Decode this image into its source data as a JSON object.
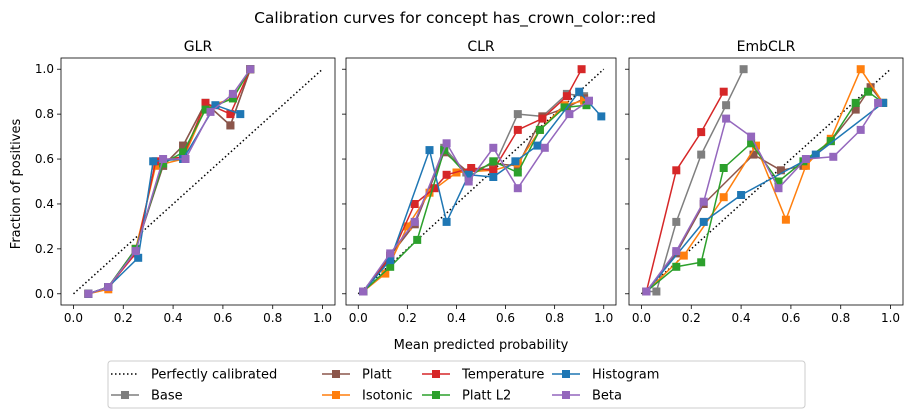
{
  "figure": {
    "suptitle": "Calibration curves for concept has_crown_color::red",
    "xlabel": "Mean predicted probability",
    "ylabel": "Fraction of positives"
  },
  "legend": {
    "placement": "bottom-center",
    "entries": [
      {
        "name": "Perfectly calibrated",
        "color": "#000000",
        "style": "dotted",
        "marker": "none"
      },
      {
        "name": "Base",
        "color": "#7f7f7f",
        "style": "solid",
        "marker": "square"
      },
      {
        "name": "Platt",
        "color": "#8c564b",
        "style": "solid",
        "marker": "square"
      },
      {
        "name": "Isotonic",
        "color": "#ff7f0e",
        "style": "solid",
        "marker": "square"
      },
      {
        "name": "Temperature",
        "color": "#d62728",
        "style": "solid",
        "marker": "square"
      },
      {
        "name": "Platt L2",
        "color": "#2ca02c",
        "style": "solid",
        "marker": "square"
      },
      {
        "name": "Histogram",
        "color": "#1f77b4",
        "style": "solid",
        "marker": "square"
      },
      {
        "name": "Beta",
        "color": "#9467bd",
        "style": "solid",
        "marker": "square"
      }
    ]
  },
  "chart_data": [
    {
      "type": "line",
      "title": "GLR",
      "xlim": [
        -0.05,
        1.05
      ],
      "ylim": [
        -0.05,
        1.05
      ],
      "xticks": [
        "0.0",
        "0.2",
        "0.4",
        "0.6",
        "0.8",
        "1.0"
      ],
      "yticks": [
        "0.0",
        "0.2",
        "0.4",
        "0.6",
        "0.8",
        "1.0"
      ],
      "show_yticklabels": true,
      "grid": false,
      "series": [
        {
          "name": "Perfectly calibrated",
          "points": [
            [
              0,
              0
            ],
            [
              1,
              1
            ]
          ]
        },
        {
          "name": "Base",
          "points": [
            [
              0.06,
              0.0
            ],
            [
              0.14,
              0.03
            ],
            [
              0.25,
              0.2
            ],
            [
              0.36,
              0.57
            ],
            [
              0.44,
              0.66
            ],
            [
              0.53,
              0.85
            ],
            [
              0.63,
              0.75
            ],
            [
              0.71,
              1.0
            ]
          ]
        },
        {
          "name": "Platt",
          "points": [
            [
              0.06,
              0.0
            ],
            [
              0.14,
              0.03
            ],
            [
              0.25,
              0.2
            ],
            [
              0.36,
              0.57
            ],
            [
              0.44,
              0.66
            ],
            [
              0.53,
              0.85
            ],
            [
              0.63,
              0.75
            ],
            [
              0.71,
              1.0
            ]
          ]
        },
        {
          "name": "Isotonic",
          "points": [
            [
              0.06,
              0.0
            ],
            [
              0.14,
              0.02
            ],
            [
              0.25,
              0.2
            ],
            [
              0.33,
              0.57
            ],
            [
              0.44,
              0.6
            ],
            [
              0.53,
              0.83
            ],
            [
              0.64,
              0.87
            ],
            [
              0.71,
              1.0
            ]
          ]
        },
        {
          "name": "Temperature",
          "points": [
            [
              0.06,
              0.0
            ],
            [
              0.14,
              0.03
            ],
            [
              0.25,
              0.18
            ],
            [
              0.33,
              0.59
            ],
            [
              0.44,
              0.61
            ],
            [
              0.53,
              0.85
            ],
            [
              0.63,
              0.8
            ],
            [
              0.71,
              1.0
            ]
          ]
        },
        {
          "name": "Platt L2",
          "points": [
            [
              0.06,
              0.0
            ],
            [
              0.14,
              0.03
            ],
            [
              0.25,
              0.2
            ],
            [
              0.36,
              0.58
            ],
            [
              0.44,
              0.63
            ],
            [
              0.53,
              0.82
            ],
            [
              0.64,
              0.87
            ],
            [
              0.71,
              1.0
            ]
          ]
        },
        {
          "name": "Histogram",
          "points": [
            [
              0.06,
              0.0
            ],
            [
              0.14,
              0.03
            ],
            [
              0.26,
              0.16
            ],
            [
              0.32,
              0.59
            ],
            [
              0.44,
              0.6
            ],
            [
              0.57,
              0.84
            ],
            [
              0.67,
              0.8
            ]
          ]
        },
        {
          "name": "Beta",
          "points": [
            [
              0.06,
              0.0
            ],
            [
              0.14,
              0.03
            ],
            [
              0.25,
              0.19
            ],
            [
              0.36,
              0.6
            ],
            [
              0.45,
              0.6
            ],
            [
              0.55,
              0.81
            ],
            [
              0.64,
              0.89
            ],
            [
              0.71,
              1.0
            ]
          ]
        }
      ]
    },
    {
      "type": "line",
      "title": "CLR",
      "xlim": [
        -0.05,
        1.05
      ],
      "ylim": [
        -0.05,
        1.05
      ],
      "xticks": [
        "0.0",
        "0.2",
        "0.4",
        "0.6",
        "0.8",
        "1.0"
      ],
      "yticks": [
        "0.0",
        "0.2",
        "0.4",
        "0.6",
        "0.8",
        "1.0"
      ],
      "show_yticklabels": false,
      "grid": false,
      "series": [
        {
          "name": "Perfectly calibrated",
          "points": [
            [
              0,
              0
            ],
            [
              1,
              1
            ]
          ]
        },
        {
          "name": "Base",
          "points": [
            [
              0.02,
              0.01
            ],
            [
              0.13,
              0.17
            ],
            [
              0.23,
              0.31
            ],
            [
              0.35,
              0.65
            ],
            [
              0.44,
              0.54
            ],
            [
              0.55,
              0.56
            ],
            [
              0.65,
              0.8
            ],
            [
              0.75,
              0.79
            ],
            [
              0.85,
              0.89
            ],
            [
              0.92,
              0.88
            ]
          ]
        },
        {
          "name": "Platt",
          "points": [
            [
              0.02,
              0.01
            ],
            [
              0.13,
              0.17
            ],
            [
              0.23,
              0.31
            ],
            [
              0.35,
              0.63
            ],
            [
              0.45,
              0.54
            ],
            [
              0.55,
              0.58
            ],
            [
              0.65,
              0.57
            ],
            [
              0.75,
              0.79
            ],
            [
              0.85,
              0.83
            ],
            [
              0.92,
              0.87
            ]
          ]
        },
        {
          "name": "Isotonic",
          "points": [
            [
              0.02,
              0.01
            ],
            [
              0.11,
              0.09
            ],
            [
              0.2,
              0.3
            ],
            [
              0.29,
              0.45
            ],
            [
              0.4,
              0.54
            ],
            [
              0.55,
              0.55
            ],
            [
              0.65,
              0.58
            ],
            [
              0.74,
              0.73
            ],
            [
              0.84,
              0.84
            ],
            [
              0.92,
              0.86
            ]
          ]
        },
        {
          "name": "Temperature",
          "points": [
            [
              0.02,
              0.01
            ],
            [
              0.13,
              0.16
            ],
            [
              0.23,
              0.4
            ],
            [
              0.31,
              0.47
            ],
            [
              0.36,
              0.53
            ],
            [
              0.46,
              0.56
            ],
            [
              0.55,
              0.55
            ],
            [
              0.65,
              0.73
            ],
            [
              0.75,
              0.78
            ],
            [
              0.85,
              0.88
            ],
            [
              0.91,
              1.0
            ]
          ]
        },
        {
          "name": "Platt L2",
          "points": [
            [
              0.02,
              0.01
            ],
            [
              0.13,
              0.12
            ],
            [
              0.24,
              0.24
            ],
            [
              0.35,
              0.64
            ],
            [
              0.45,
              0.52
            ],
            [
              0.55,
              0.59
            ],
            [
              0.65,
              0.54
            ],
            [
              0.74,
              0.73
            ],
            [
              0.84,
              0.83
            ],
            [
              0.93,
              0.84
            ]
          ]
        },
        {
          "name": "Histogram",
          "points": [
            [
              0.02,
              0.01
            ],
            [
              0.13,
              0.15
            ],
            [
              0.29,
              0.64
            ],
            [
              0.36,
              0.32
            ],
            [
              0.45,
              0.53
            ],
            [
              0.55,
              0.52
            ],
            [
              0.64,
              0.59
            ],
            [
              0.73,
              0.66
            ],
            [
              0.9,
              0.9
            ],
            [
              0.99,
              0.79
            ]
          ]
        },
        {
          "name": "Beta",
          "points": [
            [
              0.02,
              0.01
            ],
            [
              0.13,
              0.18
            ],
            [
              0.23,
              0.32
            ],
            [
              0.36,
              0.67
            ],
            [
              0.45,
              0.5
            ],
            [
              0.55,
              0.65
            ],
            [
              0.65,
              0.47
            ],
            [
              0.76,
              0.65
            ],
            [
              0.86,
              0.8
            ],
            [
              0.94,
              0.86
            ]
          ]
        }
      ]
    },
    {
      "type": "line",
      "title": "EmbCLR",
      "xlim": [
        -0.05,
        1.05
      ],
      "ylim": [
        -0.05,
        1.05
      ],
      "xticks": [
        "0.0",
        "0.2",
        "0.4",
        "0.6",
        "0.8",
        "1.0"
      ],
      "yticks": [
        "0.0",
        "0.2",
        "0.4",
        "0.6",
        "0.8",
        "1.0"
      ],
      "show_yticklabels": false,
      "grid": false,
      "series": [
        {
          "name": "Perfectly calibrated",
          "points": [
            [
              0,
              0
            ],
            [
              1,
              1
            ]
          ]
        },
        {
          "name": "Base",
          "points": [
            [
              0.02,
              0.01
            ],
            [
              0.06,
              0.01
            ],
            [
              0.14,
              0.32
            ],
            [
              0.24,
              0.62
            ],
            [
              0.34,
              0.84
            ],
            [
              0.41,
              1.0
            ]
          ]
        },
        {
          "name": "Platt",
          "points": [
            [
              0.02,
              0.01
            ],
            [
              0.14,
              0.18
            ],
            [
              0.25,
              0.4
            ],
            [
              0.45,
              0.62
            ],
            [
              0.56,
              0.55
            ],
            [
              0.65,
              0.57
            ],
            [
              0.76,
              0.68
            ],
            [
              0.86,
              0.82
            ],
            [
              0.92,
              0.92
            ],
            [
              0.97,
              0.85
            ]
          ]
        },
        {
          "name": "Isotonic",
          "points": [
            [
              0.02,
              0.01
            ],
            [
              0.17,
              0.17
            ],
            [
              0.33,
              0.43
            ],
            [
              0.46,
              0.66
            ],
            [
              0.58,
              0.33
            ],
            [
              0.66,
              0.57
            ],
            [
              0.76,
              0.69
            ],
            [
              0.88,
              1.0
            ],
            [
              0.97,
              0.85
            ]
          ]
        },
        {
          "name": "Temperature",
          "points": [
            [
              0.02,
              0.01
            ],
            [
              0.14,
              0.55
            ],
            [
              0.24,
              0.72
            ],
            [
              0.33,
              0.9
            ]
          ]
        },
        {
          "name": "Platt L2",
          "points": [
            [
              0.02,
              0.01
            ],
            [
              0.14,
              0.12
            ],
            [
              0.24,
              0.14
            ],
            [
              0.33,
              0.56
            ],
            [
              0.44,
              0.67
            ],
            [
              0.55,
              0.5
            ],
            [
              0.65,
              0.59
            ],
            [
              0.76,
              0.68
            ],
            [
              0.86,
              0.85
            ],
            [
              0.91,
              0.9
            ],
            [
              0.97,
              0.85
            ]
          ]
        },
        {
          "name": "Histogram",
          "points": [
            [
              0.02,
              0.01
            ],
            [
              0.25,
              0.32
            ],
            [
              0.4,
              0.44
            ],
            [
              0.7,
              0.62
            ],
            [
              0.97,
              0.85
            ]
          ]
        },
        {
          "name": "Beta",
          "points": [
            [
              0.02,
              0.01
            ],
            [
              0.14,
              0.19
            ],
            [
              0.25,
              0.41
            ],
            [
              0.34,
              0.78
            ],
            [
              0.44,
              0.7
            ],
            [
              0.55,
              0.47
            ],
            [
              0.66,
              0.6
            ],
            [
              0.77,
              0.61
            ],
            [
              0.88,
              0.73
            ],
            [
              0.95,
              0.85
            ]
          ]
        }
      ]
    }
  ]
}
